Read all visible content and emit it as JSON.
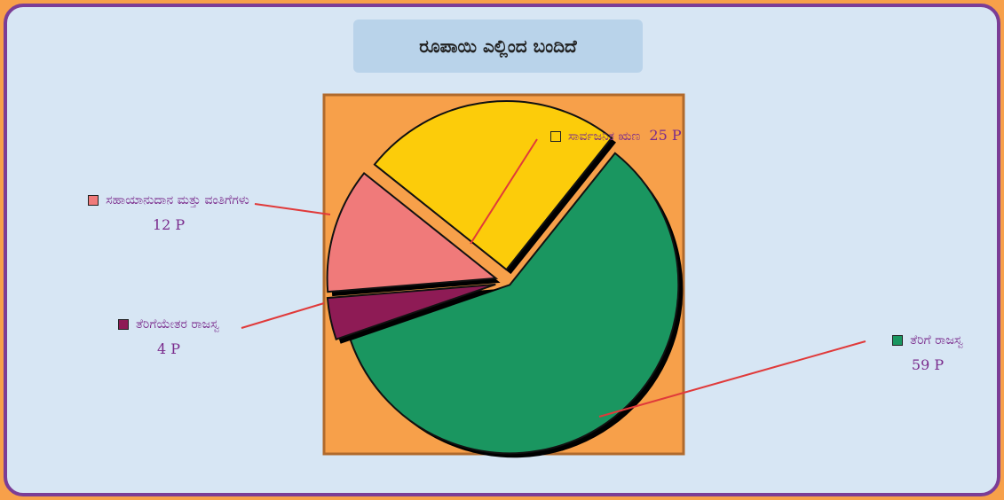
{
  "chart_data": {
    "type": "pie",
    "title": "ರೂಪಾಯಿ ಎಲ್ಲಿಂದ ಬಂದಿದೆ",
    "categories": [
      "ತೆರಿಗೆ ರಾಜಸ್ವ",
      "ತೆರಿಗೆಯೇತರ ರಾಜಸ್ವ",
      "ಸಹಾಯಾನುದಾನ ಮತ್ತು ವಂತಿಗೆಗಳು",
      "ಸಾರ್ವಜನಿಕ ಋಣ"
    ],
    "values": [
      59,
      4,
      12,
      25
    ],
    "value_labels": [
      "59 P",
      "4 P",
      "12 P",
      "25 P"
    ],
    "colors": [
      "#1a9660",
      "#8e1b55",
      "#f07a7a",
      "#fccc0a"
    ]
  }
}
